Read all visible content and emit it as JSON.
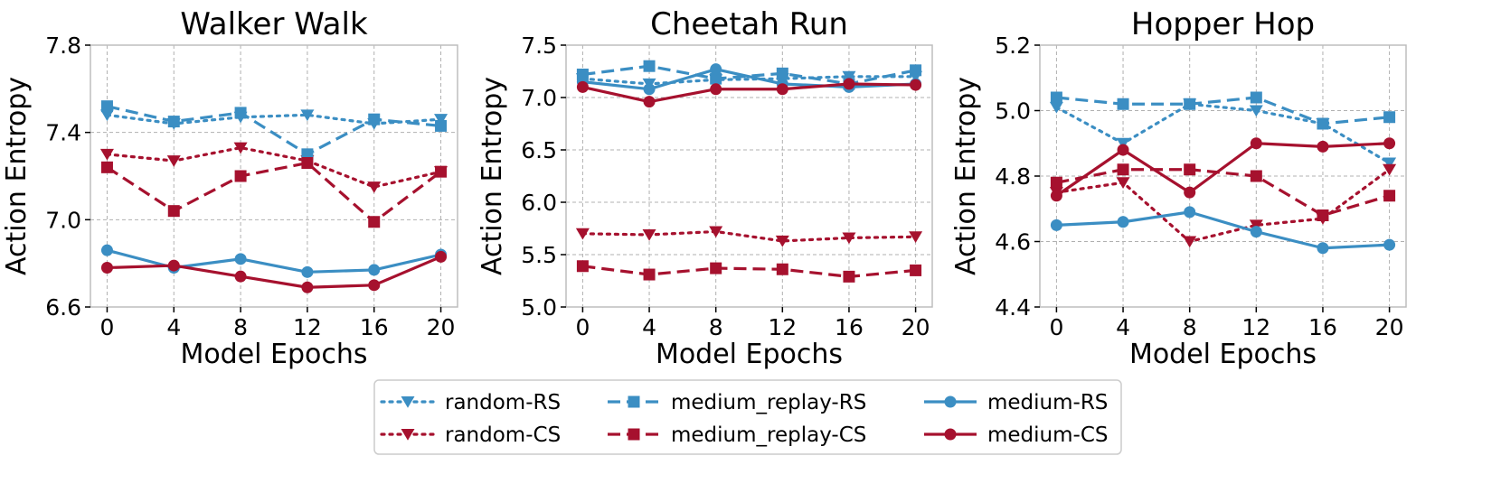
{
  "chart_data": [
    {
      "type": "line",
      "title": "Walker Walk",
      "xlabel": "Model Epochs",
      "ylabel": "Action Entropy",
      "x": [
        0,
        4,
        8,
        12,
        16,
        20
      ],
      "xticks": [
        0,
        4,
        8,
        12,
        16,
        20
      ],
      "xlim": [
        -1,
        21
      ],
      "ylim": [
        6.6,
        7.8
      ],
      "yticks": [
        6.6,
        7.0,
        7.4,
        7.8
      ],
      "ytick_labels": [
        "6.6",
        "7.0",
        "7.4",
        "7.8"
      ],
      "grid": true,
      "series": [
        {
          "name": "random-RS",
          "values": [
            7.48,
            7.44,
            7.47,
            7.48,
            7.44,
            7.46
          ]
        },
        {
          "name": "random-CS",
          "values": [
            7.3,
            7.27,
            7.33,
            7.27,
            7.15,
            7.22
          ]
        },
        {
          "name": "medium_replay-RS",
          "values": [
            7.52,
            7.45,
            7.49,
            7.3,
            7.46,
            7.43
          ]
        },
        {
          "name": "medium_replay-CS",
          "values": [
            7.24,
            7.04,
            7.2,
            7.26,
            6.99,
            7.22
          ]
        },
        {
          "name": "medium-RS",
          "values": [
            6.86,
            6.78,
            6.82,
            6.76,
            6.77,
            6.84
          ]
        },
        {
          "name": "medium-CS",
          "values": [
            6.78,
            6.79,
            6.74,
            6.69,
            6.7,
            6.83
          ]
        }
      ]
    },
    {
      "type": "line",
      "title": "Cheetah Run",
      "xlabel": "Model Epochs",
      "ylabel": "Action Entropy",
      "x": [
        0,
        4,
        8,
        12,
        16,
        20
      ],
      "xticks": [
        0,
        4,
        8,
        12,
        16,
        20
      ],
      "xlim": [
        -1,
        21
      ],
      "ylim": [
        5.0,
        7.5
      ],
      "yticks": [
        5.0,
        5.5,
        6.0,
        6.5,
        7.0,
        7.5
      ],
      "ytick_labels": [
        "5.0",
        "5.5",
        "6.0",
        "6.5",
        "7.0",
        "7.5"
      ],
      "grid": true,
      "series": [
        {
          "name": "random-RS",
          "values": [
            7.18,
            7.13,
            7.17,
            7.18,
            7.2,
            7.2
          ]
        },
        {
          "name": "random-CS",
          "values": [
            5.7,
            5.69,
            5.72,
            5.63,
            5.66,
            5.67
          ]
        },
        {
          "name": "medium_replay-RS",
          "values": [
            7.22,
            7.3,
            7.18,
            7.23,
            7.13,
            7.26
          ]
        },
        {
          "name": "medium_replay-CS",
          "values": [
            5.39,
            5.31,
            5.37,
            5.36,
            5.29,
            5.35
          ]
        },
        {
          "name": "medium-RS",
          "values": [
            7.15,
            7.08,
            7.27,
            7.13,
            7.1,
            7.13
          ]
        },
        {
          "name": "medium-CS",
          "values": [
            7.1,
            6.96,
            7.08,
            7.08,
            7.13,
            7.12
          ]
        }
      ]
    },
    {
      "type": "line",
      "title": "Hopper Hop",
      "xlabel": "Model Epochs",
      "ylabel": "Action Entropy",
      "x": [
        0,
        4,
        8,
        12,
        16,
        20
      ],
      "xticks": [
        0,
        4,
        8,
        12,
        16,
        20
      ],
      "xlim": [
        -1,
        21
      ],
      "ylim": [
        4.4,
        5.2
      ],
      "yticks": [
        4.4,
        4.6,
        4.8,
        5.0,
        5.2
      ],
      "ytick_labels": [
        "4.4",
        "4.6",
        "4.8",
        "5.0",
        "5.2"
      ],
      "grid": true,
      "series": [
        {
          "name": "random-RS",
          "values": [
            5.01,
            4.9,
            5.02,
            5.0,
            4.96,
            4.84
          ]
        },
        {
          "name": "random-CS",
          "values": [
            4.75,
            4.78,
            4.6,
            4.65,
            4.67,
            4.82
          ]
        },
        {
          "name": "medium_replay-RS",
          "values": [
            5.04,
            5.02,
            5.02,
            5.04,
            4.96,
            4.98
          ]
        },
        {
          "name": "medium_replay-CS",
          "values": [
            4.78,
            4.82,
            4.82,
            4.8,
            4.68,
            4.74
          ]
        },
        {
          "name": "medium-RS",
          "values": [
            4.65,
            4.66,
            4.69,
            4.63,
            4.58,
            4.59
          ]
        },
        {
          "name": "medium-CS",
          "values": [
            4.74,
            4.88,
            4.75,
            4.9,
            4.89,
            4.9
          ]
        }
      ]
    }
  ],
  "series_styles": {
    "random-RS": {
      "color": "#3b8ec3",
      "dash": "dotted",
      "marker": "triangle-down"
    },
    "random-CS": {
      "color": "#a6112e",
      "dash": "dotted",
      "marker": "triangle-down"
    },
    "medium_replay-RS": {
      "color": "#3b8ec3",
      "dash": "dashed",
      "marker": "square"
    },
    "medium_replay-CS": {
      "color": "#a6112e",
      "dash": "dashed",
      "marker": "square"
    },
    "medium-RS": {
      "color": "#3b8ec3",
      "dash": "solid",
      "marker": "circle"
    },
    "medium-CS": {
      "color": "#a6112e",
      "dash": "solid",
      "marker": "circle"
    }
  },
  "legend": {
    "placement": "bottom-center",
    "entries": [
      "random-RS",
      "medium_replay-RS",
      "medium-RS",
      "random-CS",
      "medium_replay-CS",
      "medium-CS"
    ]
  }
}
